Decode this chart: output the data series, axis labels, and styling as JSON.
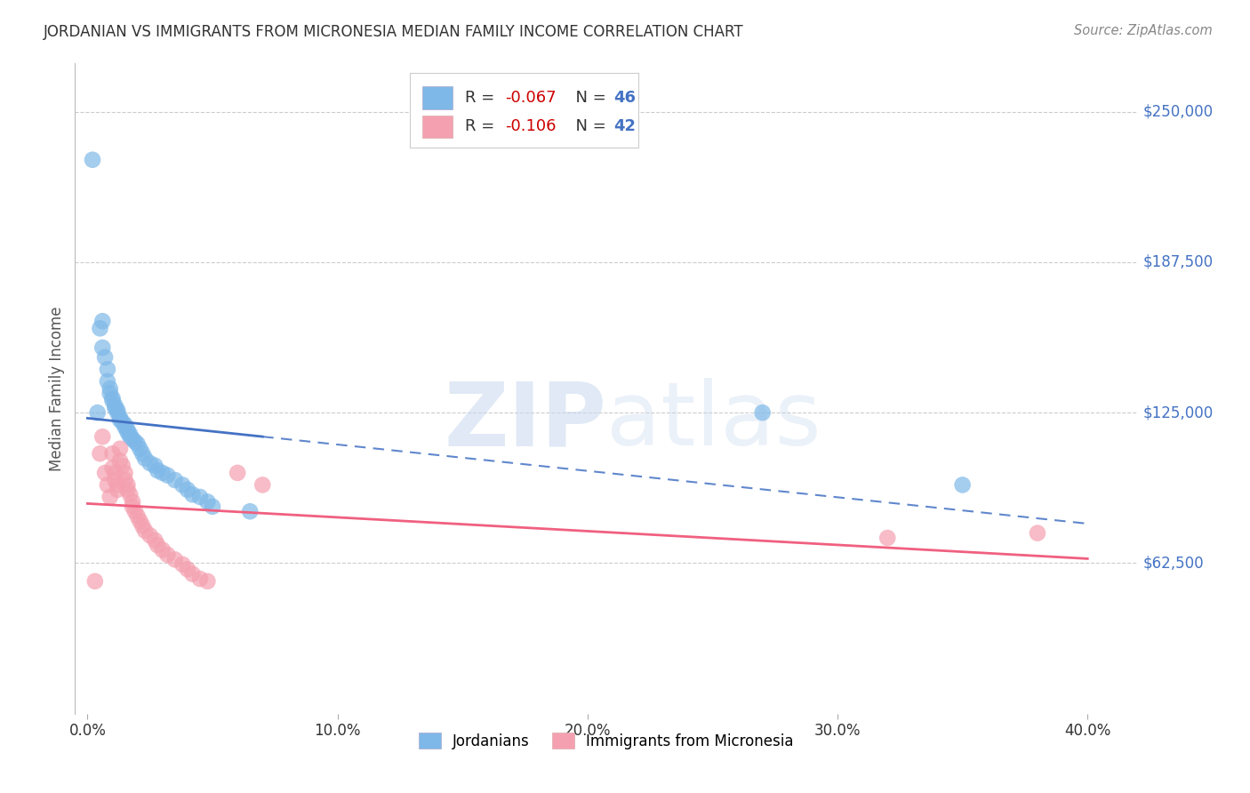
{
  "title": "JORDANIAN VS IMMIGRANTS FROM MICRONESIA MEDIAN FAMILY INCOME CORRELATION CHART",
  "source": "Source: ZipAtlas.com",
  "ylabel": "Median Family Income",
  "xlabel_ticks": [
    "0.0%",
    "10.0%",
    "20.0%",
    "30.0%",
    "40.0%"
  ],
  "xlabel_vals": [
    0.0,
    0.1,
    0.2,
    0.3,
    0.4
  ],
  "ytick_labels": [
    "$62,500",
    "$125,000",
    "$187,500",
    "$250,000"
  ],
  "ytick_vals": [
    62500,
    125000,
    187500,
    250000
  ],
  "ylim": [
    0,
    270000
  ],
  "xlim": [
    -0.005,
    0.42
  ],
  "legend_labels_bottom": [
    "Jordanians",
    "Immigrants from Micronesia"
  ],
  "blue_color": "#4472c4",
  "pink_color": "#f06080",
  "blue_scatter": "#7eb8e8",
  "pink_scatter": "#f4a0b0",
  "watermark": "ZIPatlas",
  "R_blue": "-0.067",
  "N_blue": "46",
  "R_pink": "-0.106",
  "N_pink": "42",
  "jord_x": [
    0.002,
    0.004,
    0.005,
    0.006,
    0.006,
    0.007,
    0.008,
    0.008,
    0.009,
    0.009,
    0.01,
    0.01,
    0.011,
    0.011,
    0.012,
    0.012,
    0.013,
    0.013,
    0.014,
    0.015,
    0.015,
    0.016,
    0.016,
    0.017,
    0.017,
    0.018,
    0.019,
    0.02,
    0.021,
    0.022,
    0.023,
    0.025,
    0.027,
    0.028,
    0.03,
    0.032,
    0.035,
    0.038,
    0.04,
    0.042,
    0.045,
    0.048,
    0.05,
    0.065,
    0.27,
    0.35
  ],
  "jord_y": [
    230000,
    125000,
    160000,
    163000,
    152000,
    148000,
    143000,
    138000,
    135000,
    133000,
    131000,
    130000,
    128000,
    127000,
    126000,
    125000,
    123000,
    122000,
    121000,
    120000,
    119000,
    118000,
    117000,
    116000,
    115000,
    114000,
    113000,
    112000,
    110000,
    108000,
    106000,
    104000,
    103000,
    101000,
    100000,
    99000,
    97000,
    95000,
    93000,
    91000,
    90000,
    88000,
    86000,
    84000,
    125000,
    95000
  ],
  "micro_x": [
    0.003,
    0.005,
    0.006,
    0.007,
    0.008,
    0.009,
    0.01,
    0.01,
    0.011,
    0.011,
    0.012,
    0.012,
    0.013,
    0.013,
    0.014,
    0.015,
    0.015,
    0.016,
    0.016,
    0.017,
    0.018,
    0.018,
    0.019,
    0.02,
    0.021,
    0.022,
    0.023,
    0.025,
    0.027,
    0.028,
    0.03,
    0.032,
    0.035,
    0.038,
    0.04,
    0.042,
    0.045,
    0.048,
    0.06,
    0.07,
    0.32,
    0.38
  ],
  "micro_y": [
    55000,
    108000,
    115000,
    100000,
    95000,
    90000,
    108000,
    102000,
    100000,
    97000,
    95000,
    93000,
    110000,
    105000,
    103000,
    100000,
    97000,
    95000,
    93000,
    91000,
    88000,
    86000,
    84000,
    82000,
    80000,
    78000,
    76000,
    74000,
    72000,
    70000,
    68000,
    66000,
    64000,
    62000,
    60000,
    58000,
    56000,
    55000,
    100000,
    95000,
    73000,
    75000
  ]
}
